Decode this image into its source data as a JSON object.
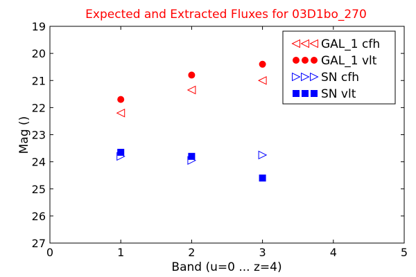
{
  "chart_data": {
    "type": "scatter",
    "title": "Expected and Extracted Fluxes for 03D1bo_270",
    "title_color": "#ff0000",
    "xlabel": "Band (u=0 ... z=4)",
    "ylabel": "Mag ()",
    "xlim": [
      0,
      5
    ],
    "ylim": [
      27,
      19
    ],
    "y_inverted": true,
    "xticks": [
      0,
      1,
      2,
      3,
      4,
      5
    ],
    "yticks": [
      19,
      20,
      21,
      22,
      23,
      24,
      25,
      26,
      27
    ],
    "grid": false,
    "legend_position": "top-right",
    "series": [
      {
        "name": "GAL_1 cfh",
        "marker": "triangle-left",
        "filled": false,
        "color": "#ff0000",
        "points": [
          {
            "x": 1,
            "y": 22.2
          },
          {
            "x": 2,
            "y": 21.35
          },
          {
            "x": 3,
            "y": 21.0
          }
        ]
      },
      {
        "name": "GAL_1 vlt",
        "marker": "circle",
        "filled": true,
        "color": "#ff0000",
        "points": [
          {
            "x": 1,
            "y": 21.7
          },
          {
            "x": 2,
            "y": 20.8
          },
          {
            "x": 3,
            "y": 20.4
          }
        ]
      },
      {
        "name": "SN cfh",
        "marker": "triangle-right",
        "filled": false,
        "color": "#0000ff",
        "points": [
          {
            "x": 1,
            "y": 23.8
          },
          {
            "x": 2,
            "y": 23.95
          },
          {
            "x": 3,
            "y": 23.75
          }
        ]
      },
      {
        "name": "SN vlt",
        "marker": "square",
        "filled": true,
        "color": "#0000ff",
        "points": [
          {
            "x": 1,
            "y": 23.65
          },
          {
            "x": 2,
            "y": 23.8
          },
          {
            "x": 3,
            "y": 24.6
          }
        ]
      }
    ]
  }
}
